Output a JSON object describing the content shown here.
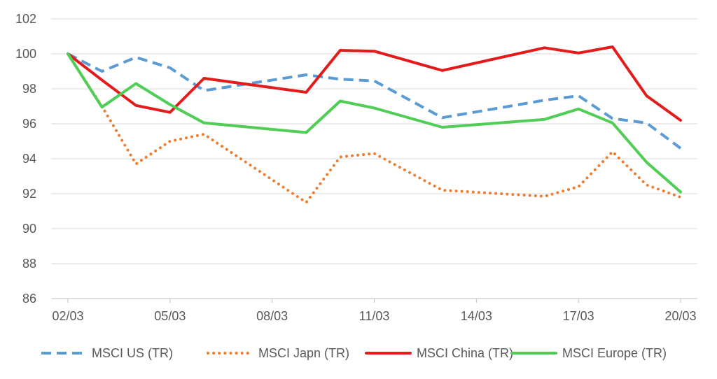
{
  "chart_data": {
    "type": "line",
    "title": "",
    "xlabel": "",
    "ylabel": "",
    "ylim": [
      86,
      102
    ],
    "y_ticks": [
      "86",
      "88",
      "90",
      "92",
      "94",
      "96",
      "98",
      "100",
      "102"
    ],
    "x_tick_labels": [
      "02/03",
      "05/03",
      "08/03",
      "11/03",
      "14/03",
      "17/03",
      "20/03"
    ],
    "x_tick_days": [
      2,
      5,
      8,
      11,
      14,
      17,
      20
    ],
    "x": [
      2,
      3,
      4,
      5,
      6,
      9,
      10,
      11,
      13,
      16,
      17,
      18,
      19,
      20
    ],
    "grid": "horizontal",
    "legend_position": "bottom",
    "series": [
      {
        "name": "MSCI US (TR)",
        "color": "#5b9bd5",
        "style": "dashed",
        "values": [
          100,
          99.0,
          99.8,
          99.2,
          97.9,
          98.8,
          98.55,
          98.45,
          96.35,
          97.35,
          97.6,
          96.3,
          96.05,
          94.6
        ]
      },
      {
        "name": "MSCI Japn (TR)",
        "color": "#ed7d31",
        "style": "dotted",
        "values": [
          100,
          97.0,
          93.7,
          95.0,
          95.4,
          91.5,
          94.1,
          94.3,
          92.2,
          91.85,
          92.4,
          94.4,
          92.5,
          91.8
        ]
      },
      {
        "name": "MSCI China (TR)",
        "color": "#e31b1b",
        "style": "solid",
        "values": [
          100,
          98.5,
          97.05,
          96.65,
          98.6,
          97.8,
          100.2,
          100.15,
          99.05,
          100.35,
          100.05,
          100.4,
          97.6,
          96.2
        ]
      },
      {
        "name": "MSCI Europe (TR)",
        "color": "#4fcd55",
        "style": "solid",
        "values": [
          100,
          96.95,
          98.3,
          97.1,
          96.05,
          95.5,
          97.3,
          96.9,
          95.8,
          96.25,
          96.85,
          96.05,
          93.8,
          92.1
        ]
      }
    ]
  }
}
